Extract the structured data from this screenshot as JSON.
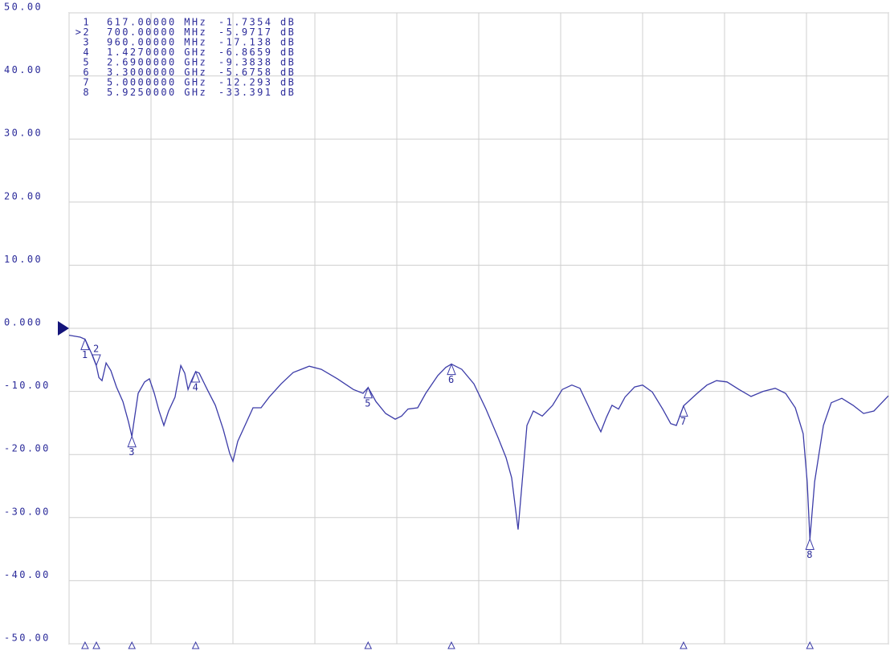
{
  "chart_data": {
    "type": "line",
    "color": "#3c3ca8",
    "grid": true,
    "xlim": [
      500,
      6500
    ],
    "xticks": [
      500,
      1100,
      1700,
      2300,
      2900,
      3500,
      4100,
      4700,
      5300,
      5900,
      6500
    ],
    "ylim": [
      -50,
      50
    ],
    "yticks": [
      {
        "value": 50,
        "label": "50.00"
      },
      {
        "value": 40,
        "label": "40.00"
      },
      {
        "value": 30,
        "label": "30.00"
      },
      {
        "value": 20,
        "label": "20.00"
      },
      {
        "value": 10,
        "label": "10.00"
      },
      {
        "value": 0,
        "label": "0.000"
      },
      {
        "value": -10,
        "label": "-10.00"
      },
      {
        "value": -20,
        "label": "-20.00"
      },
      {
        "value": -30,
        "label": "-30.00"
      },
      {
        "value": -40,
        "label": "-40.00"
      },
      {
        "value": -50,
        "label": "-50.00"
      }
    ],
    "x": [
      500,
      582,
      617,
      665,
      700,
      718,
      741,
      771,
      806,
      847,
      894,
      935,
      960,
      971,
      1006,
      1053,
      1088,
      1124,
      1159,
      1194,
      1229,
      1276,
      1318,
      1347,
      1371,
      1394,
      1427,
      1453,
      1512,
      1571,
      1629,
      1676,
      1700,
      1735,
      1788,
      1847,
      1906,
      1965,
      2053,
      2141,
      2259,
      2347,
      2465,
      2582,
      2653,
      2690,
      2747,
      2818,
      2888,
      2935,
      2982,
      3053,
      3112,
      3200,
      3259,
      3300,
      3376,
      3465,
      3553,
      3641,
      3700,
      3741,
      3788,
      3818,
      3853,
      3900,
      3965,
      4041,
      4112,
      4182,
      4241,
      4300,
      4347,
      4394,
      4435,
      4476,
      4524,
      4571,
      4641,
      4700,
      4771,
      4847,
      4906,
      4947,
      5000,
      5100,
      5171,
      5241,
      5318,
      5406,
      5494,
      5582,
      5671,
      5747,
      5818,
      5876,
      5905,
      5925,
      5960,
      6024,
      6082,
      6159,
      6241,
      6318,
      6394,
      6500
    ],
    "values": [
      -1.1,
      -1.4,
      -1.7354,
      -4.0,
      -5.9717,
      -7.8,
      -8.3,
      -5.5,
      -6.7,
      -9.3,
      -11.6,
      -14.8,
      -17.138,
      -15.4,
      -10.3,
      -8.5,
      -8.0,
      -10.3,
      -13.1,
      -15.4,
      -13.1,
      -10.9,
      -5.9,
      -7.1,
      -9.7,
      -8.4,
      -6.8659,
      -7.1,
      -9.7,
      -12.2,
      -16.0,
      -19.8,
      -21.1,
      -17.9,
      -15.4,
      -12.6,
      -12.6,
      -10.9,
      -8.8,
      -7.0,
      -6.0,
      -6.5,
      -8.0,
      -9.7,
      -10.3,
      -9.3838,
      -11.6,
      -13.5,
      -14.4,
      -13.9,
      -12.8,
      -12.6,
      -10.3,
      -7.5,
      -6.2,
      -5.6758,
      -6.5,
      -8.8,
      -12.8,
      -17.3,
      -20.5,
      -23.7,
      -31.9,
      -24.3,
      -15.4,
      -13.1,
      -13.9,
      -12.2,
      -9.7,
      -9.0,
      -9.5,
      -12.2,
      -14.4,
      -16.4,
      -14.1,
      -12.2,
      -12.8,
      -10.9,
      -9.3,
      -9.0,
      -10.1,
      -12.8,
      -15.1,
      -15.4,
      -12.293,
      -10.3,
      -9.0,
      -8.3,
      -8.5,
      -9.7,
      -10.8,
      -10.0,
      -9.5,
      -10.3,
      -12.6,
      -16.7,
      -24.3,
      -33.391,
      -24.3,
      -15.4,
      -11.8,
      -11.1,
      -12.2,
      -13.5,
      -13.1,
      -10.7
    ],
    "markers": [
      {
        "id": "1",
        "label": "1",
        "x": 617,
        "x_label": "617.00000 MHz",
        "value": -1.7354,
        "value_label": "-1.7354 dB"
      },
      {
        "id": ">2",
        "label": "2",
        "active": true,
        "x": 700,
        "x_label": "700.00000 MHz",
        "value": -5.9717,
        "value_label": "-5.9717 dB"
      },
      {
        "id": "3",
        "label": "3",
        "x": 960,
        "x_label": "960.00000 MHz",
        "value": -17.138,
        "value_label": "-17.138 dB"
      },
      {
        "id": "4",
        "label": "4",
        "x": 1427,
        "x_label": "1.4270000 GHz",
        "value": -6.8659,
        "value_label": "-6.8659 dB"
      },
      {
        "id": "5",
        "label": "5",
        "x": 2690,
        "x_label": "2.6900000 GHz",
        "value": -9.3838,
        "value_label": "-9.3838 dB"
      },
      {
        "id": "6",
        "label": "6",
        "x": 3300,
        "x_label": "3.3000000 GHz",
        "value": -5.6758,
        "value_label": "-5.6758 dB"
      },
      {
        "id": "7",
        "label": "7",
        "x": 5000,
        "x_label": "5.0000000 GHz",
        "value": -12.293,
        "value_label": "-12.293 dB"
      },
      {
        "id": "8",
        "label": "8",
        "x": 5925,
        "x_label": "5.9250000 GHz",
        "value": -33.391,
        "value_label": "-33.391 dB"
      }
    ]
  }
}
